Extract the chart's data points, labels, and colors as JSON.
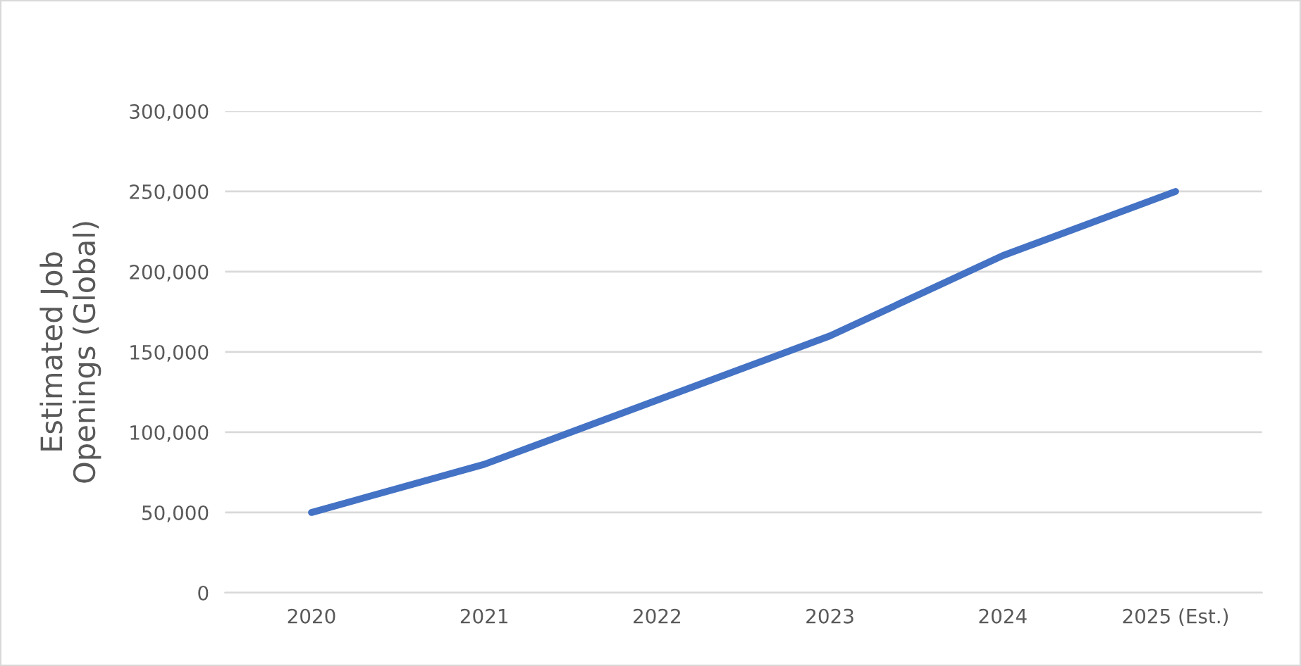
{
  "chart_data": {
    "type": "line",
    "categories": [
      "2020",
      "2021",
      "2022",
      "2023",
      "2024",
      "2025 (Est.)"
    ],
    "series": [
      {
        "color": "#4472c4",
        "values": [
          50000,
          80000,
          120000,
          160000,
          210000,
          250000
        ]
      }
    ],
    "ylabel": "Estimated Job\nOpenings (Global)",
    "ylim": [
      0,
      300000
    ],
    "yticks": [
      0,
      {
        "value": 50000,
        "label": "50,000"
      },
      {
        "value": 100000,
        "label": "100,000"
      },
      {
        "value": 150000,
        "label": "150,000"
      },
      {
        "value": 200000,
        "label": "200,000"
      },
      {
        "value": 250000,
        "label": "250,000"
      },
      {
        "value": 300000,
        "label": "300,000"
      }
    ],
    "grid": "y",
    "legend": false,
    "marker": "none",
    "line_style": "solid"
  }
}
